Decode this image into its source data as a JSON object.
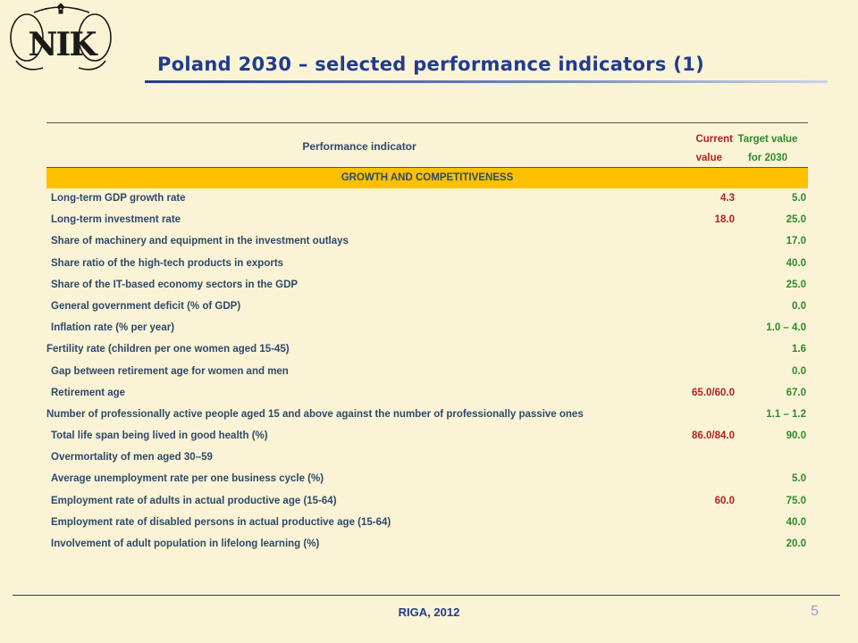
{
  "header": {
    "logo_text": "NIK",
    "title": "Poland 2030 – selected performance indicators (1)"
  },
  "table": {
    "col_indicator": "Performance indicator",
    "col_current_line1": "Current",
    "col_current_line2": "value",
    "col_target_line1": "Target value",
    "col_target_line2": "for 2030",
    "section": "GROWTH AND COMPETITIVENESS",
    "rows": [
      {
        "indicator": "Long-term GDP growth rate",
        "current": "4.3",
        "target": "5.0"
      },
      {
        "indicator": "Long-term investment rate",
        "current": "18.0",
        "target": "25.0"
      },
      {
        "indicator": "Share of machinery and equipment in the investment outlays",
        "current": "",
        "target": "17.0"
      },
      {
        "indicator": "Share ratio of the high-tech products in exports",
        "current": "",
        "target": "40.0"
      },
      {
        "indicator": "Share of the IT-based economy sectors in the GDP",
        "current": "",
        "target": "25.0"
      },
      {
        "indicator": "General government deficit (% of GDP)",
        "current": "",
        "target": "0.0"
      },
      {
        "indicator": "Inflation rate (% per year)",
        "current": "",
        "target": "1.0 – 4.0"
      },
      {
        "indicator": "Fertility rate (children per one women aged 15-45)",
        "current": "",
        "target": "1.6"
      },
      {
        "indicator": "Gap between retirement age for women and men",
        "current": "",
        "target": "0.0"
      },
      {
        "indicator": "Retirement age",
        "current": "65.0/60.0",
        "target": "67.0"
      },
      {
        "indicator": "Number of professionally active people aged 15 and above against the number of professionally passive ones",
        "current": "",
        "target": "1.1 – 1.2"
      },
      {
        "indicator": "Total life span being lived in good health (%)",
        "current": "86.0/84.0",
        "target": "90.0"
      },
      {
        "indicator": "Overmortality of men aged 30–59",
        "current": "",
        "target": ""
      },
      {
        "indicator": "Average unemployment rate per one business cycle (%)",
        "current": "",
        "target": "5.0"
      },
      {
        "indicator": "Employment rate of adults in actual productive age (15-64)",
        "current": "60.0",
        "target": "75.0"
      },
      {
        "indicator": "Employment rate of disabled persons in actual productive age (15-64)",
        "current": "",
        "target": "40.0"
      },
      {
        "indicator": "Involvement of adult population in lifelong learning (%)",
        "current": "",
        "target": "20.0"
      }
    ]
  },
  "footer": {
    "location": "RIGA, 2012",
    "page_number": "5"
  },
  "colors": {
    "title": "#1f3c8e",
    "indicator_text": "#2d4a6b",
    "current_value": "#b22222",
    "target_value": "#2e8b2e",
    "section_band": "#ffc000",
    "background": "#fbf3d5"
  }
}
